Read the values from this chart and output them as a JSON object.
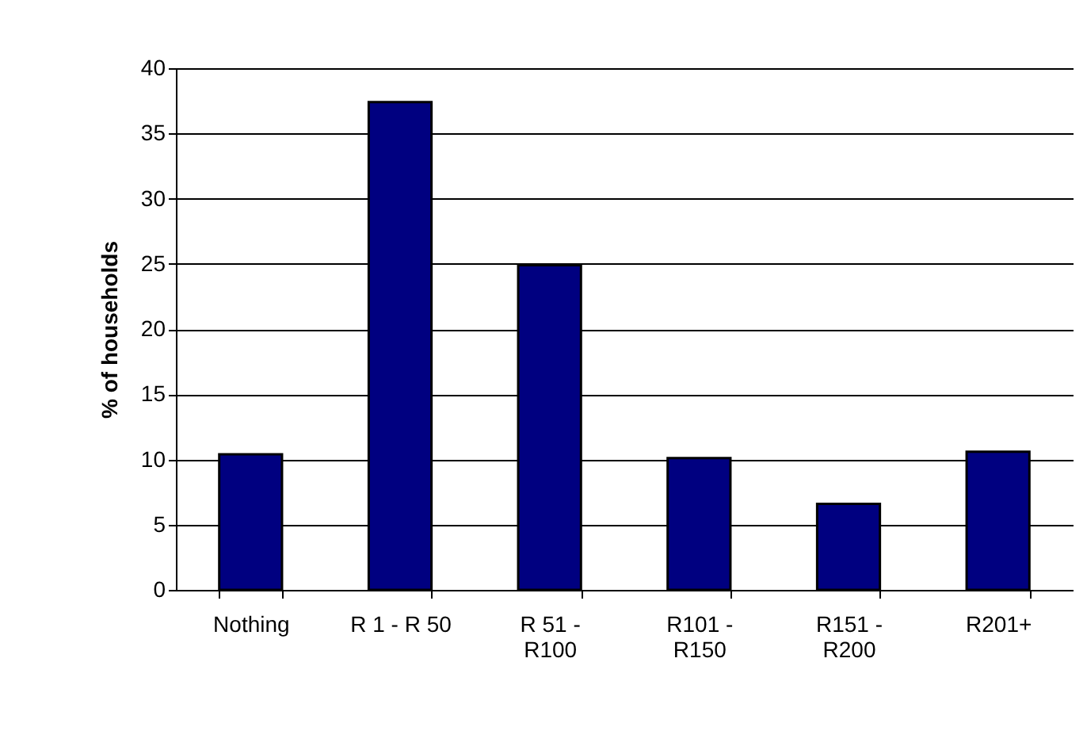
{
  "chart_data": {
    "type": "bar",
    "ylabel": "% of households",
    "categories": [
      "Nothing",
      "R 1 - R 50",
      "R 51 - R100",
      "R101 - R150",
      "R151 - R200",
      "R201+"
    ],
    "values": [
      10.4,
      37.4,
      24.9,
      10.1,
      6.6,
      10.6
    ],
    "color": "#000080",
    "ylim": [
      0,
      40
    ],
    "yticks": [
      0,
      5,
      10,
      15,
      20,
      25,
      30,
      35,
      40
    ],
    "grid": "y"
  }
}
